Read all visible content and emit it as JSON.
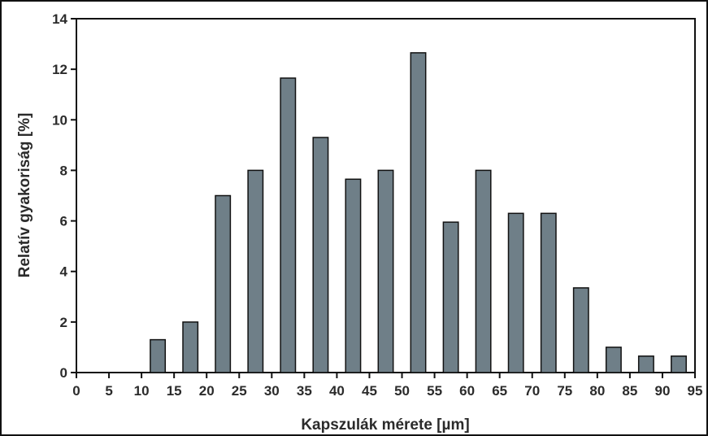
{
  "chart_data": {
    "type": "bar",
    "title": "",
    "xlabel": "Kapszulák mérete [µm]",
    "ylabel": "Relatív gyakoriság [%]",
    "xlim": [
      0,
      95
    ],
    "ylim": [
      0,
      14
    ],
    "x_ticks": [
      "0",
      "5",
      "10",
      "15",
      "20",
      "25",
      "30",
      "35",
      "40",
      "45",
      "50",
      "55",
      "60",
      "65",
      "70",
      "75",
      "80",
      "85",
      "90",
      "95"
    ],
    "y_ticks": [
      "0",
      "2",
      "4",
      "6",
      "8",
      "10",
      "12",
      "14"
    ],
    "bin_width": 5,
    "bins": [
      {
        "x": 12.5,
        "value": 1.3
      },
      {
        "x": 17.5,
        "value": 2.0
      },
      {
        "x": 22.5,
        "value": 7.0
      },
      {
        "x": 27.5,
        "value": 8.0
      },
      {
        "x": 32.5,
        "value": 11.65
      },
      {
        "x": 37.5,
        "value": 9.3
      },
      {
        "x": 42.5,
        "value": 7.65
      },
      {
        "x": 47.5,
        "value": 8.0
      },
      {
        "x": 52.5,
        "value": 12.65
      },
      {
        "x": 57.5,
        "value": 5.95
      },
      {
        "x": 62.5,
        "value": 8.0
      },
      {
        "x": 67.5,
        "value": 6.3
      },
      {
        "x": 72.5,
        "value": 6.3
      },
      {
        "x": 77.5,
        "value": 3.35
      },
      {
        "x": 82.5,
        "value": 1.0
      },
      {
        "x": 87.5,
        "value": 0.65
      },
      {
        "x": 92.5,
        "value": 0.65
      }
    ],
    "colors": {
      "bar": "#6f7f88",
      "outline": "#111111"
    },
    "grid": false,
    "legend": "none"
  }
}
